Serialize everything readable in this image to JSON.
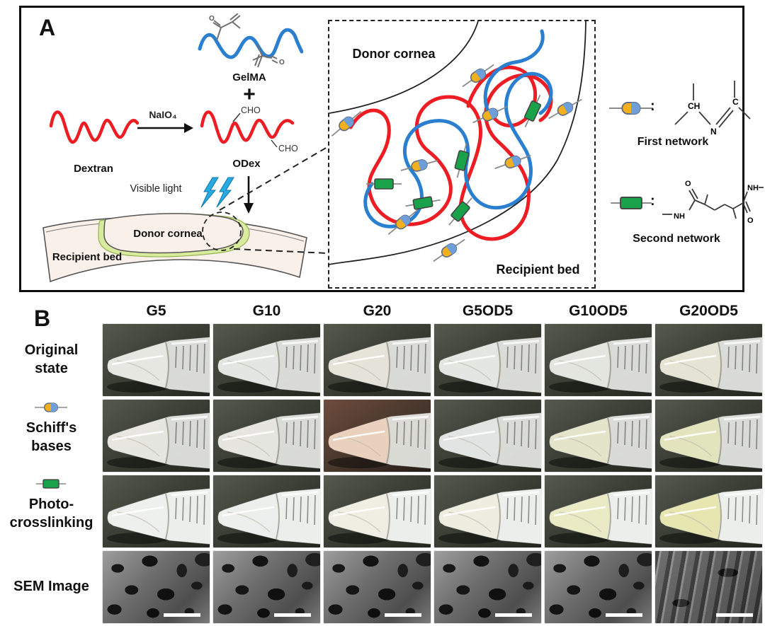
{
  "colors": {
    "red": "#ee1c23",
    "blue": "#2a7fd0",
    "pill_yellow": "#f2b01e",
    "pill_blue": "#6f9fd8",
    "green": "#1aa24b",
    "lightning": "#29abe2",
    "cream": "#faf0ea",
    "glue_green": "#d9ec9e",
    "sem_gray": "#707070",
    "cell_bg": "linear-gradient(145deg,#565a4e 0%,#3e4238 40%,#23261e 100%)"
  },
  "panelA": {
    "label": "A",
    "gelma": {
      "label": "GelMA",
      "o": "O"
    },
    "plus": "+",
    "dextran": {
      "label": "Dextran"
    },
    "reaction": {
      "reagent": "NaIO₄"
    },
    "odex": {
      "label": "ODex",
      "cho": "CHO"
    },
    "visible_light": "Visible light",
    "graft": {
      "donor": "Donor cornea",
      "recipient": "Recipient bed"
    },
    "inset": {
      "donor": "Donor cornea",
      "recipient": "Recipient bed"
    },
    "legend": {
      "first": {
        "colon": ":",
        "label": "First network",
        "atoms": {
          "ch": "CH",
          "n": "N",
          "c": "C"
        }
      },
      "second": {
        "colon": ":",
        "label": "Second network",
        "atoms": {
          "o": "O",
          "nh": "NH"
        }
      }
    }
  },
  "panelB": {
    "label": "B",
    "columns": [
      "G5",
      "G10",
      "G20",
      "G5OD5",
      "G10OD5",
      "G20OD5"
    ],
    "rows": [
      {
        "id": "original",
        "lines": [
          "Original",
          "state"
        ],
        "icon": null
      },
      {
        "id": "schiff",
        "lines": [
          "Schiff's",
          "bases"
        ],
        "icon": "pill"
      },
      {
        "id": "photo",
        "lines": [
          "Photo-",
          "crosslinking"
        ],
        "icon": "rect"
      },
      {
        "id": "sem",
        "lines": [
          "SEM Image"
        ],
        "icon": null
      }
    ],
    "cells": {
      "original": [
        {
          "tint": "#efeee8"
        },
        {
          "tint": "#eaece9"
        },
        {
          "tint": "#ede8da"
        },
        {
          "tint": "#e9ece9"
        },
        {
          "tint": "#e9ebe5"
        },
        {
          "tint": "#ece9d2"
        }
      ],
      "schiff": [
        {
          "tint": "#eeece6"
        },
        {
          "tint": "#edebe4"
        },
        {
          "tint": "#f2c9ae",
          "bg": "linear-gradient(145deg,#6e4c3e 0%,#4c3a2e 45%,#241d18 100%)"
        },
        {
          "tint": "#e4eaea"
        },
        {
          "tint": "#eaeac2"
        },
        {
          "tint": "#e7eaae"
        }
      ],
      "photo": [
        {
          "tint": "#eef0ee"
        },
        {
          "tint": "#ecefee"
        },
        {
          "tint": "#f0ecdd"
        },
        {
          "tint": "#edebd8"
        },
        {
          "tint": "#e8e7ac"
        },
        {
          "tint": "#e2e08b"
        }
      ],
      "sem": [
        {
          "texture": "porous"
        },
        {
          "texture": "porous"
        },
        {
          "texture": "porous"
        },
        {
          "texture": "porous"
        },
        {
          "texture": "porous"
        },
        {
          "texture": "fibrous"
        }
      ]
    }
  }
}
